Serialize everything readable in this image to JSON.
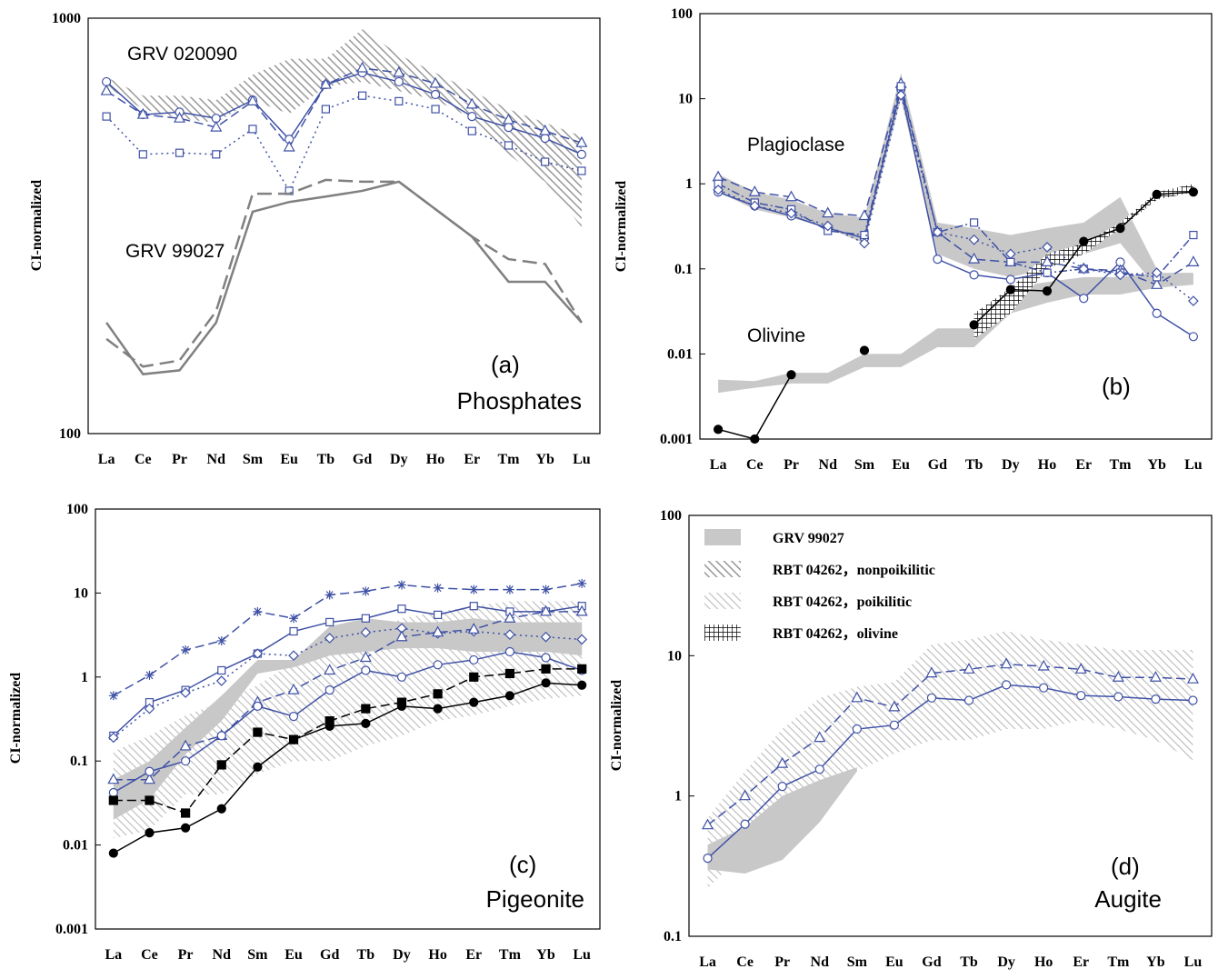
{
  "chart_data": [
    {
      "type": "line",
      "y_label": "CI-normalized",
      "log": true,
      "ylim": [
        100,
        1000
      ],
      "yticks": [
        100,
        1000
      ],
      "categories": [
        "La",
        "Ce",
        "Pr",
        "Nd",
        "Sm",
        "Eu",
        "Tb",
        "Gd",
        "Dy",
        "Ho",
        "Er",
        "Tm",
        "Yb",
        "Lu"
      ],
      "annotations": [
        "GRV 020090",
        "GRV 99027",
        "(a)",
        "Phosphates"
      ],
      "bands": [
        {
          "fill": "hatch-dense",
          "low": [
            685,
            604,
            574,
            560,
            635,
            588,
            685,
            703,
            668,
            635,
            574,
            470,
            404,
            314
          ],
          "high": [
            721,
            651,
            651,
            635,
            731,
            798,
            798,
            941,
            817,
            739,
            668,
            604,
            560,
            520
          ]
        }
      ],
      "series": [
        {
          "color": "#3f51a5",
          "dash": "solid",
          "marker": "circle",
          "values": [
            703,
            586,
            594,
            574,
            635,
            511,
            692,
            739,
            703,
            655,
            580,
            546,
            514,
            470
          ]
        },
        {
          "color": "#3f51a5",
          "dash": "dashed",
          "marker": "triangle",
          "values": [
            668,
            586,
            574,
            546,
            631,
            489,
            692,
            758,
            739,
            696,
            620,
            569,
            535,
            501
          ]
        },
        {
          "color": "#3f51a5",
          "dash": "dotted",
          "marker": "square",
          "values": [
            580,
            470,
            474,
            470,
            541,
            384,
            604,
            651,
            631,
            604,
            535,
            494,
            451,
            429
          ]
        },
        {
          "color": "#808080",
          "dash": "solid",
          "marker": "none",
          "values": [
            185,
            139,
            142,
            185,
            342,
            361,
            372,
            384,
            404,
            347,
            298,
            232,
            232,
            185
          ]
        },
        {
          "color": "#808080",
          "dash": "long-dash",
          "marker": "none",
          "values": [
            169,
            145,
            150,
            197,
            378,
            378,
            408,
            404,
            404,
            347,
            298,
            263,
            256,
            185
          ]
        }
      ]
    },
    {
      "type": "line",
      "y_label": "CI-normalized",
      "log": true,
      "ylim": [
        0.001,
        100
      ],
      "yticks": [
        0.001,
        0.01,
        0.1,
        1,
        10,
        100
      ],
      "categories": [
        "La",
        "Ce",
        "Pr",
        "Nd",
        "Sm",
        "Eu",
        "Gd",
        "Tb",
        "Dy",
        "Ho",
        "Er",
        "Tm",
        "Yb",
        "Lu"
      ],
      "annotations": [
        "Plagioclase",
        "Olivine",
        "(b)"
      ],
      "bands": [
        {
          "fill": "solid",
          "low": [
            0.8,
            0.5,
            0.4,
            0.3,
            0.2,
            10,
            0.15,
            0.1,
            0.08,
            0.1,
            0.15,
            0.2,
            0.06,
            null
          ],
          "high": [
            1.3,
            0.8,
            0.65,
            0.45,
            0.4,
            20,
            0.35,
            0.3,
            0.25,
            0.3,
            0.35,
            0.7,
            0.1,
            null
          ]
        },
        {
          "fill": "solid",
          "low": [
            0.0035,
            0.004,
            0.0045,
            0.0045,
            0.007,
            0.007,
            0.012,
            0.012,
            0.03,
            0.04,
            0.05,
            0.05,
            0.06,
            0.065
          ],
          "high": [
            0.005,
            0.0048,
            0.006,
            0.006,
            0.01,
            0.01,
            0.02,
            0.02,
            0.06,
            0.07,
            0.08,
            0.08,
            0.09,
            0.09
          ]
        },
        {
          "fill": "grid",
          "low": [
            null,
            null,
            null,
            null,
            null,
            null,
            null,
            0.015,
            0.03,
            0.1,
            0.15,
            0.3,
            0.65,
            0.8
          ],
          "high": [
            null,
            null,
            null,
            null,
            null,
            null,
            null,
            0.03,
            0.06,
            0.15,
            0.2,
            0.35,
            0.8,
            1.0
          ]
        }
      ],
      "series": [
        {
          "color": "#3f51a5",
          "dash": "solid",
          "marker": "circle",
          "values": [
            0.8,
            0.55,
            0.42,
            0.3,
            0.23,
            13,
            0.13,
            0.085,
            0.075,
            0.09,
            0.045,
            0.12,
            0.03,
            0.016
          ]
        },
        {
          "color": "#3f51a5",
          "dash": "dashed",
          "marker": "triangle",
          "values": [
            1.2,
            0.8,
            0.7,
            0.45,
            0.42,
            15,
            0.27,
            0.13,
            0.12,
            0.12,
            0.1,
            0.095,
            0.065,
            0.12
          ]
        },
        {
          "color": "#3f51a5",
          "dash": "dashdot",
          "marker": "square",
          "values": [
            1.0,
            0.6,
            0.5,
            0.28,
            0.25,
            14,
            0.27,
            0.35,
            0.12,
            0.09,
            0.1,
            0.09,
            0.08,
            0.25
          ]
        },
        {
          "color": "#3f51a5",
          "dash": "dotted",
          "marker": "diamond",
          "values": [
            0.85,
            0.55,
            0.45,
            0.32,
            0.2,
            11,
            0.27,
            0.22,
            0.15,
            0.18,
            0.1,
            0.085,
            0.09,
            0.042
          ]
        },
        {
          "color": "#000000",
          "dash": "solid",
          "marker": "filled-circle",
          "values": [
            0.0013,
            0.001,
            0.0057,
            null,
            0.011,
            null,
            null,
            0.022,
            0.057,
            0.055,
            0.21,
            0.3,
            0.75,
            0.8
          ]
        }
      ]
    },
    {
      "type": "line",
      "y_label": "CI-normalized",
      "log": true,
      "ylim": [
        0.001,
        100
      ],
      "yticks": [
        0.001,
        0.01,
        0.1,
        1,
        10,
        100
      ],
      "categories": [
        "La",
        "Ce",
        "Pr",
        "Nd",
        "Sm",
        "Eu",
        "Gd",
        "Tb",
        "Dy",
        "Ho",
        "Er",
        "Tm",
        "Yb",
        "Lu"
      ],
      "annotations": [
        "(c)",
        "Pigeonite"
      ],
      "bands": [
        {
          "fill": "hatch-light",
          "low": [
            0.012,
            0.015,
            0.04,
            0.04,
            0.07,
            0.1,
            0.1,
            0.15,
            0.2,
            0.3,
            0.35,
            0.45,
            0.55,
            0.6
          ],
          "high": [
            0.13,
            0.2,
            0.35,
            0.5,
            0.8,
            1.5,
            2,
            3,
            5,
            6,
            7,
            8,
            8,
            8
          ]
        },
        {
          "fill": "solid",
          "low": [
            0.02,
            0.035,
            0.12,
            0.3,
            1.1,
            1.3,
            1.8,
            2,
            2.2,
            2.2,
            2,
            2,
            2,
            1.8
          ],
          "high": [
            0.06,
            0.1,
            0.25,
            0.6,
            1.6,
            1.6,
            4,
            5,
            4.5,
            4.5,
            5,
            4.5,
            4.5,
            4.5
          ]
        }
      ],
      "series": [
        {
          "color": "#3f51a5",
          "dash": "dashed",
          "marker": "star",
          "values": [
            0.6,
            1.05,
            2.1,
            2.7,
            6,
            5,
            9.5,
            10.5,
            12.5,
            11.5,
            11,
            11,
            11,
            13
          ]
        },
        {
          "color": "#3f51a5",
          "dash": "solid",
          "marker": "square",
          "values": [
            0.2,
            0.5,
            0.7,
            1.2,
            1.9,
            3.5,
            4.5,
            5,
            6.5,
            5.5,
            7,
            6,
            6,
            7
          ]
        },
        {
          "color": "#3f51a5",
          "dash": "dotted",
          "marker": "diamond",
          "values": [
            0.19,
            0.42,
            0.65,
            0.9,
            1.9,
            1.8,
            2.9,
            3.4,
            3.8,
            3.3,
            3.5,
            3.2,
            3.0,
            2.8
          ]
        },
        {
          "color": "#3f51a5",
          "dash": "dashed",
          "marker": "triangle",
          "values": [
            0.06,
            0.06,
            0.15,
            0.2,
            0.5,
            0.7,
            1.2,
            1.7,
            3,
            3.4,
            3.7,
            5,
            6,
            6
          ]
        },
        {
          "color": "#3f51a5",
          "dash": "solid",
          "marker": "circle",
          "values": [
            0.042,
            0.075,
            0.1,
            0.2,
            0.45,
            0.34,
            0.7,
            1.2,
            1.0,
            1.4,
            1.6,
            2.0,
            1.7,
            1.2
          ]
        },
        {
          "color": "#000000",
          "dash": "dashed",
          "marker": "filled-square",
          "values": [
            0.034,
            0.034,
            0.024,
            0.09,
            0.22,
            0.18,
            0.3,
            0.42,
            0.5,
            0.63,
            1.0,
            1.1,
            1.25,
            1.25
          ]
        },
        {
          "color": "#000000",
          "dash": "solid",
          "marker": "filled-circle",
          "values": [
            0.008,
            0.014,
            0.016,
            0.027,
            0.085,
            0.18,
            0.26,
            0.28,
            0.45,
            0.42,
            0.5,
            0.6,
            0.85,
            0.8
          ]
        }
      ]
    },
    {
      "type": "line",
      "y_label": "CI-normalized",
      "log": true,
      "ylim": [
        0.1,
        100
      ],
      "yticks": [
        0.1,
        1,
        10,
        100
      ],
      "categories": [
        "La",
        "Ce",
        "Pr",
        "Nd",
        "Sm",
        "Eu",
        "Gd",
        "Tb",
        "Dy",
        "Ho",
        "Er",
        "Tm",
        "Yb",
        "Lu"
      ],
      "annotations": [
        "(d)",
        "Augite"
      ],
      "legend": [
        {
          "name": "GRV 99027",
          "fill": "solid"
        },
        {
          "name": "RBT 04262，nonpoikilitic",
          "fill": "hatch-dense"
        },
        {
          "name": "RBT 04262，poikilitic",
          "fill": "hatch-light"
        },
        {
          "name": "RBT 04262，olivine",
          "fill": "grid"
        }
      ],
      "bands": [
        {
          "fill": "hatch-light",
          "low": [
            0.22,
            0.4,
            0.7,
            1.1,
            1.5,
            2,
            2.5,
            2.5,
            3,
            3,
            3.5,
            3,
            2.5,
            1.8
          ],
          "high": [
            0.7,
            1.5,
            3,
            5,
            6,
            6.5,
            12,
            13,
            15,
            13,
            12,
            11,
            11,
            11
          ]
        },
        {
          "fill": "solid",
          "low": [
            0.3,
            0.28,
            0.35,
            0.65,
            1.5,
            null,
            null,
            null,
            null,
            null,
            null,
            null,
            null,
            null
          ],
          "high": [
            0.45,
            0.6,
            1.0,
            1.3,
            1.6,
            null,
            null,
            null,
            null,
            null,
            null,
            null,
            null,
            null
          ]
        }
      ],
      "series": [
        {
          "color": "#3f51a5",
          "dash": "dashed",
          "marker": "triangle",
          "values": [
            0.62,
            1.0,
            1.7,
            2.6,
            5,
            4.3,
            7.5,
            8,
            8.7,
            8.4,
            8,
            7,
            7,
            6.8
          ]
        },
        {
          "color": "#3f51a5",
          "dash": "solid",
          "marker": "circle",
          "values": [
            0.36,
            0.63,
            1.17,
            1.55,
            3,
            3.2,
            5,
            4.8,
            6.2,
            5.9,
            5.2,
            5.1,
            4.9,
            4.8
          ]
        }
      ]
    }
  ]
}
